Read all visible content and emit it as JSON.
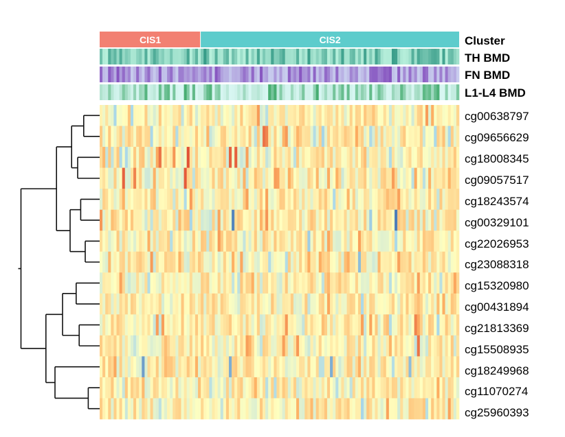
{
  "chart_data": {
    "type": "heatmap",
    "annotations": [
      {
        "key": "cluster",
        "label": "Cluster"
      },
      {
        "key": "th",
        "label": "TH BMD"
      },
      {
        "key": "fn",
        "label": "FN BMD"
      },
      {
        "key": "l1",
        "label": "L1-L4 BMD"
      }
    ],
    "clusters": [
      {
        "name": "CIS1",
        "color": "#F28072",
        "n_samples": 36
      },
      {
        "name": "CIS2",
        "color": "#5DCCCC",
        "n_samples": 92
      }
    ],
    "rows": [
      "cg00638797",
      "cg09656629",
      "cg18008345",
      "cg09057517",
      "cg18243574",
      "cg00329101",
      "cg22026953",
      "cg23088318",
      "cg15320980",
      "cg00431894",
      "cg21813369",
      "cg15508935",
      "cg18249968",
      "cg11070274",
      "cg25960393"
    ],
    "value_range": [
      -2.5,
      3
    ],
    "colors": {
      "heat_low": "#4575B4",
      "heat_mid": "#FFFFBF",
      "heat_high": "#D73027",
      "th_scale": [
        "#B8F0DC",
        "#1E8C78"
      ],
      "fn_scale": [
        "#C8CDEE",
        "#7B3FB8"
      ],
      "l1_scale": [
        "#D8F6F2",
        "#2CA05A"
      ]
    },
    "highlights": [
      {
        "row": 1,
        "col": 58,
        "value": 2.2
      },
      {
        "row": 1,
        "col": 59,
        "value": 2.0
      },
      {
        "row": 2,
        "col": 31,
        "value": 2.6
      },
      {
        "row": 2,
        "col": 46,
        "value": 2.4
      },
      {
        "row": 2,
        "col": 48,
        "value": 2.4
      },
      {
        "row": 2,
        "col": 21,
        "value": 2.2
      },
      {
        "row": 3,
        "col": 8,
        "value": 2.4
      },
      {
        "row": 3,
        "col": 12,
        "value": 2.0
      },
      {
        "row": 3,
        "col": 30,
        "value": 2.5
      },
      {
        "row": 5,
        "col": 47,
        "value": -2.3
      },
      {
        "row": 5,
        "col": 105,
        "value": -2.4
      },
      {
        "row": 5,
        "col": 96,
        "value": -1.4
      },
      {
        "row": 6,
        "col": 74,
        "value": -1.4
      },
      {
        "row": 7,
        "col": 92,
        "value": -1.6
      },
      {
        "row": 10,
        "col": 112,
        "value": 2.0
      },
      {
        "row": 11,
        "col": 113,
        "value": 2.2
      },
      {
        "row": 12,
        "col": 15,
        "value": -2.0
      },
      {
        "row": 12,
        "col": 46,
        "value": -1.8
      },
      {
        "row": 12,
        "col": 82,
        "value": -1.8
      },
      {
        "row": 12,
        "col": 110,
        "value": -1.6
      }
    ],
    "dendrogram": [
      [
        "C",
        0,
        1
      ],
      [
        "C",
        2,
        3
      ],
      [
        "M",
        0,
        1
      ],
      [
        "C",
        4,
        5
      ],
      [
        "C",
        6,
        7
      ],
      [
        "M",
        3,
        4
      ],
      [
        "M",
        2,
        5
      ],
      [
        "C",
        8,
        9
      ],
      [
        "C",
        10,
        11
      ],
      [
        "C",
        13,
        14
      ],
      [
        "M",
        12,
        9
      ],
      [
        "M",
        8,
        10
      ],
      [
        "M",
        7,
        11
      ],
      [
        "M",
        6,
        12
      ],
      [
        "M",
        13,
        9
      ]
    ],
    "dendrogram_heights": [
      0.05,
      0.12,
      0.2,
      0.09,
      0.07,
      0.33,
      0.52,
      0.18,
      0.06,
      0.04,
      0.28,
      0.5,
      0.76,
      0.94,
      1.0
    ]
  }
}
